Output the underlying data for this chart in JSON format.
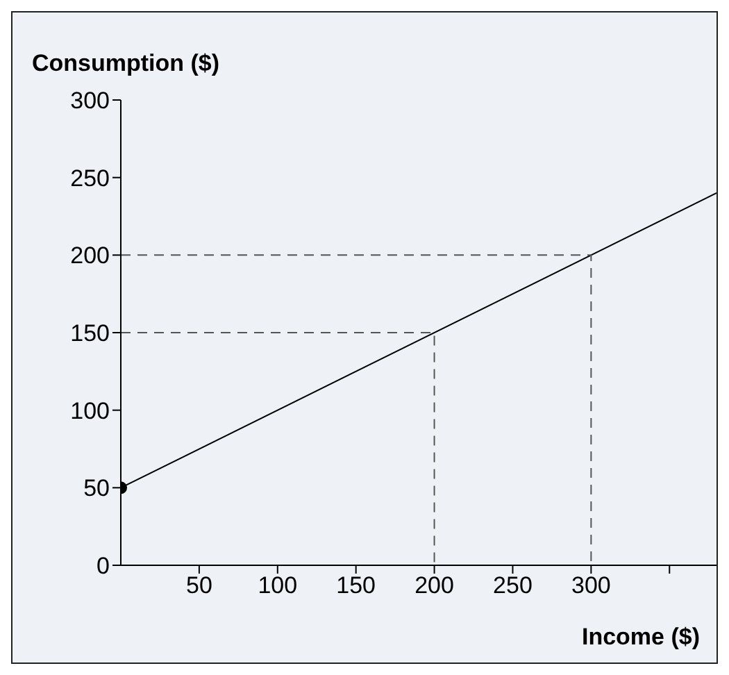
{
  "chart_data": {
    "type": "line",
    "xlabel": "Income ($)",
    "ylabel": "Consumption ($)",
    "xlim": [
      0,
      380
    ],
    "ylim": [
      0,
      300
    ],
    "xticks": [
      50,
      100,
      150,
      200,
      250,
      300,
      {
        "value": 350,
        "label": null
      }
    ],
    "yticks": [
      0,
      50,
      100,
      150,
      200,
      250,
      300
    ],
    "series": [
      {
        "color": "#000000",
        "line_style": "solid",
        "marker": "none",
        "x": [
          0,
          380
        ],
        "values": [
          50,
          240
        ]
      },
      {
        "color": "#555555",
        "line_style": "dashed",
        "marker": "none",
        "x": [
          0,
          300,
          300
        ],
        "values": [
          200,
          200,
          0
        ]
      },
      {
        "color": "#555555",
        "line_style": "dashed",
        "marker": "none",
        "x": [
          0,
          200,
          200
        ],
        "values": [
          150,
          150,
          0
        ]
      },
      {
        "type": "scatter",
        "color": "#000000",
        "marker": "circle",
        "x": [
          0
        ],
        "values": [
          50
        ]
      }
    ]
  }
}
